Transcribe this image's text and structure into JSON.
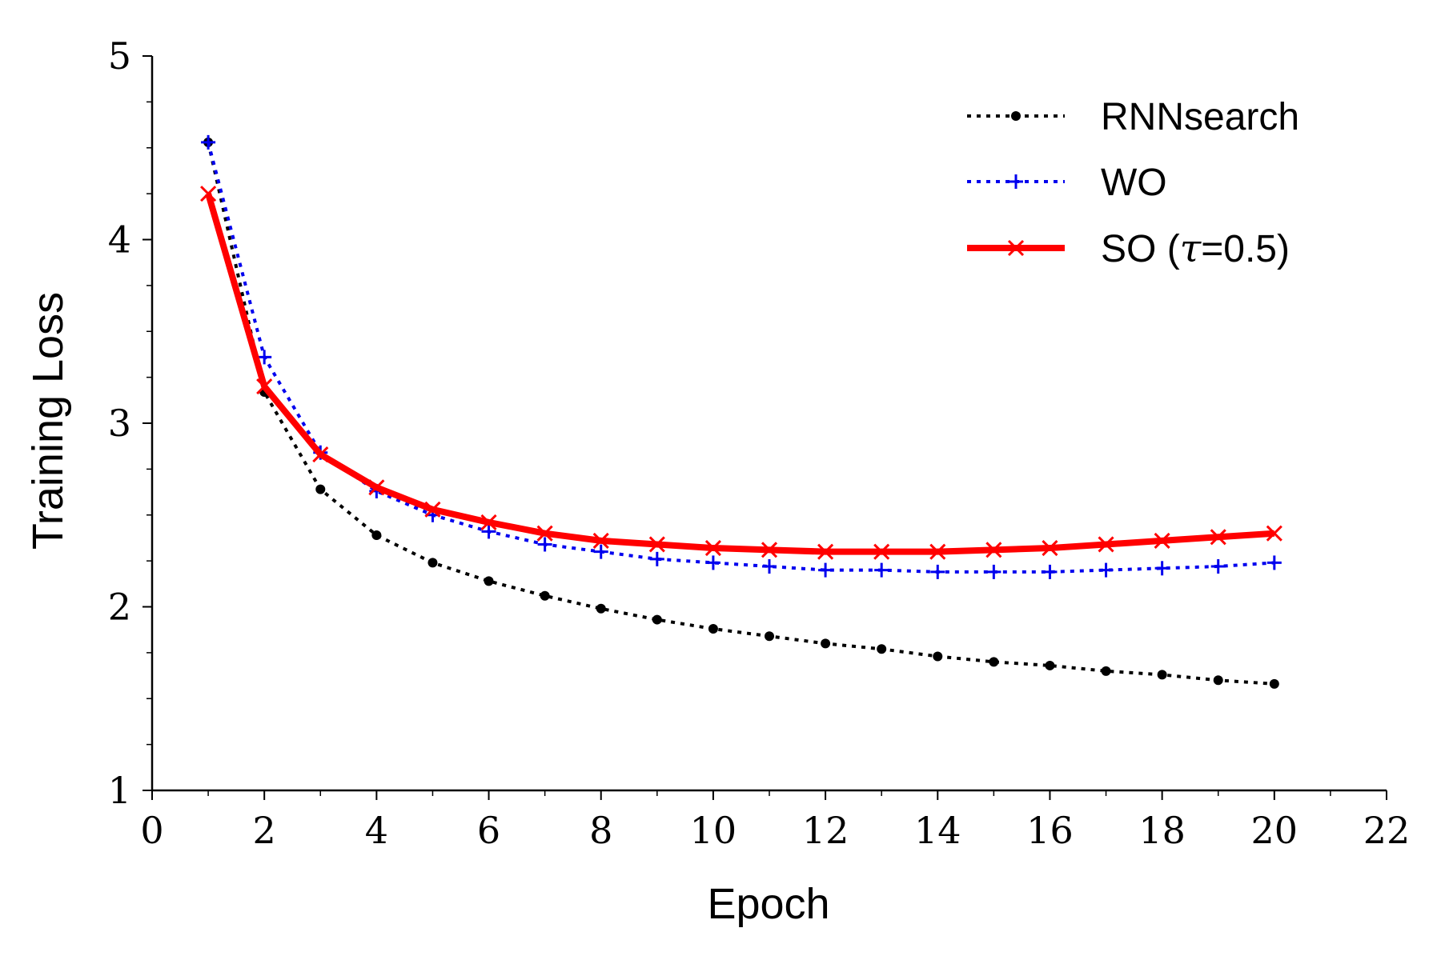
{
  "chart_data": {
    "type": "line",
    "title": "",
    "xlabel": "Epoch",
    "ylabel": "Training Loss",
    "xlim": [
      0,
      22
    ],
    "ylim": [
      1,
      5
    ],
    "xticks": [
      0,
      2,
      4,
      6,
      8,
      10,
      12,
      14,
      16,
      18,
      20,
      22
    ],
    "yticks": [
      1,
      2,
      3,
      4,
      5
    ],
    "xtick_labels": [
      "0",
      "2",
      "4",
      "6",
      "8",
      "10",
      "12",
      "14",
      "16",
      "18",
      "20",
      "22"
    ],
    "ytick_labels": [
      "1",
      "2",
      "3",
      "4",
      "5"
    ],
    "grid": false,
    "legend_position": "top-right",
    "x": [
      1,
      2,
      3,
      4,
      5,
      6,
      7,
      8,
      9,
      10,
      11,
      12,
      13,
      14,
      15,
      16,
      17,
      18,
      19,
      20
    ],
    "series": [
      {
        "name": "RNNsearch",
        "legend_label": "RNNsearch",
        "color": "#000000",
        "style": "dotted",
        "marker": "dot",
        "values": [
          4.53,
          3.17,
          2.64,
          2.39,
          2.24,
          2.14,
          2.06,
          1.99,
          1.93,
          1.88,
          1.84,
          1.8,
          1.77,
          1.73,
          1.7,
          1.68,
          1.65,
          1.63,
          1.6,
          1.58
        ]
      },
      {
        "name": "WO",
        "legend_label": "WO",
        "color": "#0000ee",
        "style": "dotted",
        "marker": "plus",
        "values": [
          4.53,
          3.36,
          2.84,
          2.63,
          2.5,
          2.41,
          2.34,
          2.3,
          2.26,
          2.24,
          2.22,
          2.2,
          2.2,
          2.19,
          2.19,
          2.19,
          2.2,
          2.21,
          2.22,
          2.24
        ]
      },
      {
        "name": "SO",
        "legend_label": "SO (",
        "legend_symbol": "τ",
        "legend_suffix": "=0.5)",
        "color": "#ff0000",
        "style": "solid",
        "marker": "x",
        "values": [
          4.25,
          3.2,
          2.83,
          2.65,
          2.53,
          2.46,
          2.4,
          2.36,
          2.34,
          2.32,
          2.31,
          2.3,
          2.3,
          2.3,
          2.31,
          2.32,
          2.34,
          2.36,
          2.38,
          2.4
        ]
      }
    ]
  }
}
